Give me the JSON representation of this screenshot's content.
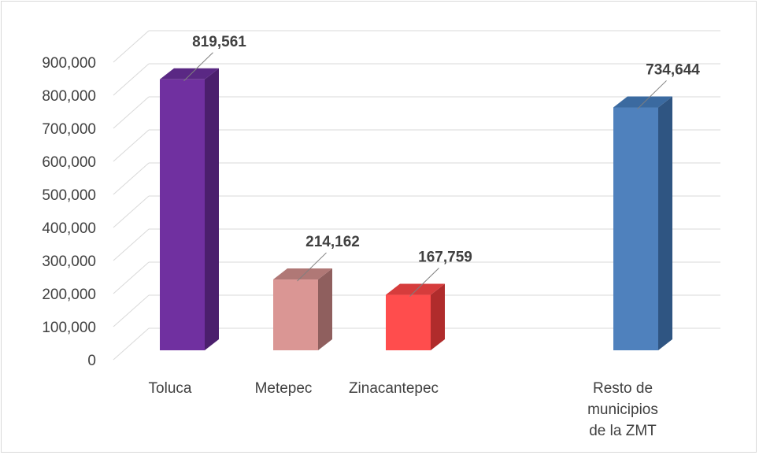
{
  "chart_data": {
    "type": "bar",
    "title": "",
    "xlabel": "",
    "ylabel": "",
    "ylim": [
      0,
      900000
    ],
    "yticks": [
      0,
      100000,
      200000,
      300000,
      400000,
      500000,
      600000,
      700000,
      800000,
      900000
    ],
    "ytick_labels": [
      "0",
      "100,000",
      "200,000",
      "300,000",
      "400,000",
      "500,000",
      "600,000",
      "700,000",
      "800,000",
      "900,000"
    ],
    "grid": true,
    "legend": "none",
    "style": "3d-column",
    "categories": [
      {
        "label_lines": [
          "Toluca"
        ],
        "value": 819561,
        "value_label": "819,561",
        "color": "#7030A0",
        "side_color": "#4B1F6D",
        "top_color": "#5A2884"
      },
      {
        "label_lines": [
          "Metepec"
        ],
        "value": 214162,
        "value_label": "214,162",
        "color": "#DA9694",
        "side_color": "#8F5F5E",
        "top_color": "#B07876"
      },
      {
        "label_lines": [
          "Zinacantepec"
        ],
        "value": 167759,
        "value_label": "167,759",
        "color": "#FF4D4D",
        "side_color": "#B02C2C",
        "top_color": "#D63C3C"
      },
      {
        "label_lines": [
          "Resto de",
          "municipios",
          "de la ZMT"
        ],
        "value": 734644,
        "value_label": "734,644",
        "color": "#4F81BD",
        "side_color": "#2F5582",
        "top_color": "#3B6AA0"
      }
    ],
    "colors": {
      "grid": "#d9d9d9",
      "text": "#404040",
      "leader": "#7f7f7f"
    }
  }
}
